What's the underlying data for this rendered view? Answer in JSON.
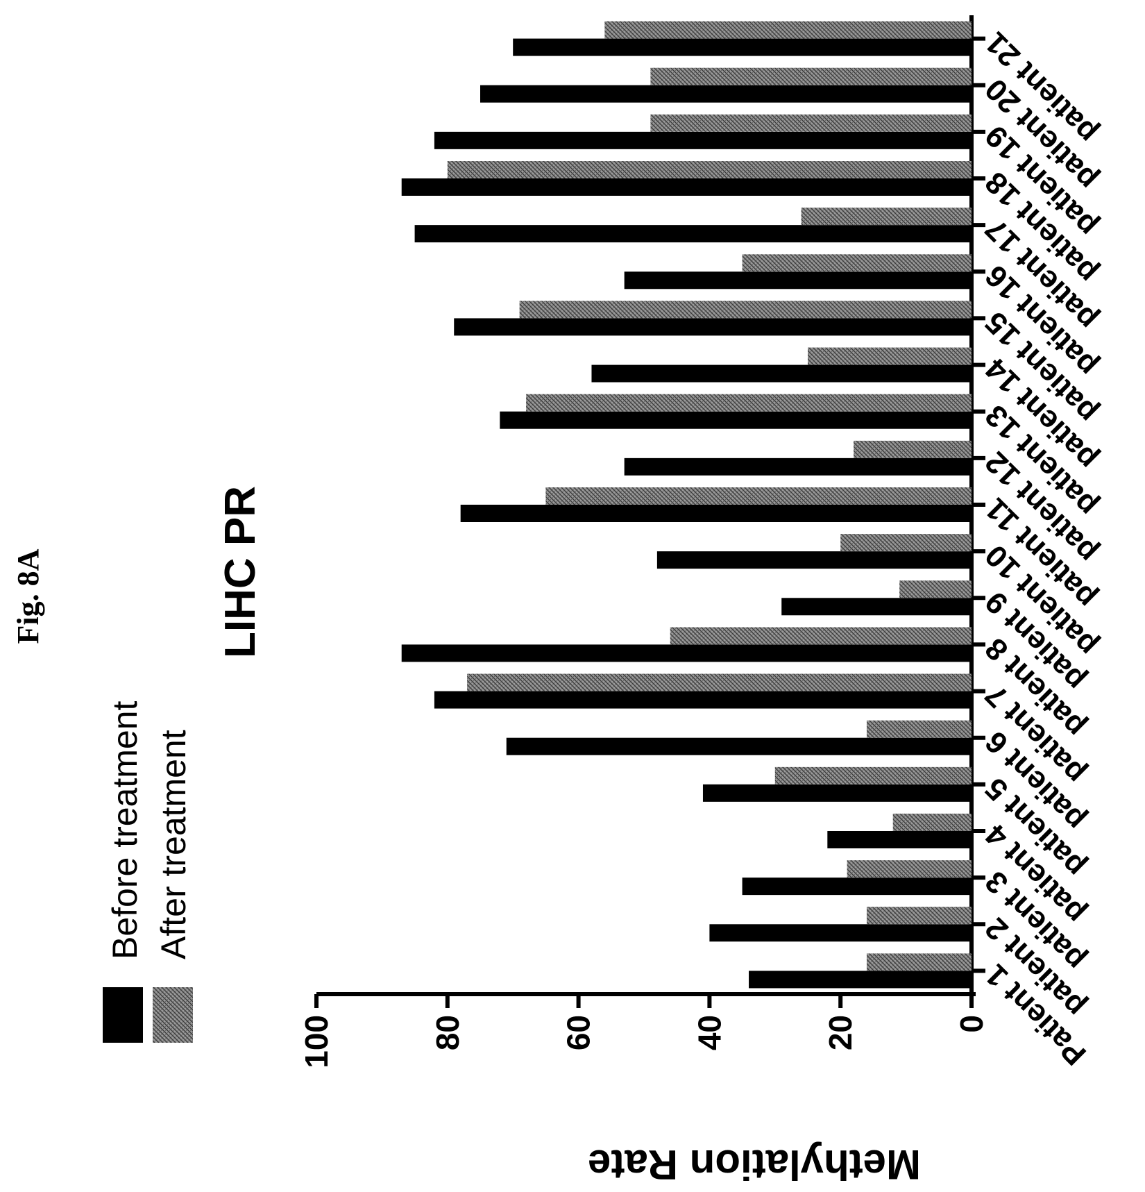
{
  "figure_label": "Fig. 8A",
  "chart_data": {
    "type": "bar",
    "title": "LIHC PR",
    "xlabel": "",
    "ylabel": "Methylation Rate",
    "ylim": [
      0,
      100
    ],
    "yticks": [
      0,
      20,
      40,
      60,
      80,
      100
    ],
    "categories": [
      "Patient 1",
      "patient 2",
      "patient 3",
      "patient 4",
      "patient 5",
      "patient 6",
      "patient 7",
      "patient 8",
      "patient 9",
      "patient 10",
      "patient 11",
      "patient 12",
      "patient 13",
      "patient 14",
      "patient 15",
      "patient 16",
      "patient 17",
      "patient 18",
      "patient 19",
      "patient 20",
      "patient 21"
    ],
    "series": [
      {
        "name": "Before treatment",
        "color": "#000000",
        "pattern": "solid",
        "values": [
          34,
          40,
          35,
          22,
          41,
          71,
          82,
          87,
          29,
          48,
          78,
          53,
          72,
          58,
          79,
          53,
          85,
          87,
          82,
          75,
          70
        ]
      },
      {
        "name": "After treatment",
        "color": "#8a8a8a",
        "pattern": "crosshatch",
        "values": [
          16,
          16,
          19,
          12,
          30,
          16,
          77,
          46,
          11,
          20,
          65,
          18,
          68,
          25,
          69,
          35,
          26,
          80,
          49,
          49,
          56
        ]
      }
    ],
    "legend_position": "top-left",
    "grid": false
  }
}
